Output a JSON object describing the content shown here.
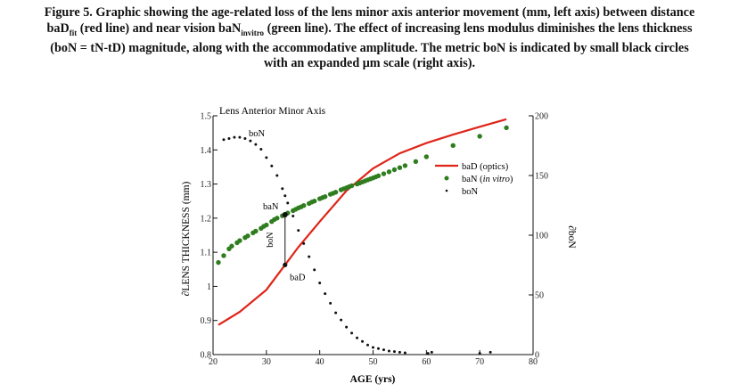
{
  "caption": {
    "line1": "Figure 5. Graphic showing the age-related loss of the lens minor axis anterior movement (mm, left axis) between distance",
    "line2": "baD_fit (red line) and near vision baN_invitro (green line). The effect of increasing lens modulus diminishes the lens thickness",
    "line3": "(boN = tN-tD) magnitude, along with the accommodative amplitude. The metric boN is indicated by small black circles",
    "line4": "with an expanded μm scale (right axis)."
  },
  "chart_data": {
    "type": "line",
    "title": "Lens Anterior Minor Axis",
    "xlabel": "AGE (yrs)",
    "ylabel": "∂LENS THICKNESS (mm)",
    "y2label": "∂boN",
    "xlim": [
      20,
      80
    ],
    "ylim": [
      0.8,
      1.5
    ],
    "y2lim": [
      0,
      200
    ],
    "x_ticks": [
      "20",
      "30",
      "40",
      "50",
      "60",
      "70",
      "80"
    ],
    "y_ticks": [
      "0.8",
      "0.9",
      "1",
      "1.1",
      "1.2",
      "1.3",
      "1.4",
      "1.5"
    ],
    "y2_ticks": [
      "0",
      "50",
      "100",
      "150",
      "200"
    ],
    "grid": false,
    "legend_position": "right-middle",
    "annotations": {
      "baN_label": "baN",
      "baD_label": "baD",
      "boN_vertical_label": "boN",
      "boN_curve_label": "boN",
      "baN_point": {
        "x": 33.5,
        "y": 1.21
      },
      "baD_point": {
        "x": 33.5,
        "y": 1.063
      }
    },
    "series": [
      {
        "name": "baD (optics)",
        "axis": "left",
        "style": "line",
        "color": "#e02418",
        "x": [
          21,
          25,
          30,
          33.5,
          36,
          40,
          45,
          50,
          55,
          60,
          65,
          70,
          75
        ],
        "y": [
          0.887,
          0.925,
          0.99,
          1.063,
          1.115,
          1.19,
          1.28,
          1.346,
          1.39,
          1.42,
          1.445,
          1.468,
          1.49
        ]
      },
      {
        "name": "baN (in vitro)",
        "axis": "left",
        "style": "points",
        "color": "#2e7d1e",
        "x": [
          21,
          22,
          23,
          23.5,
          24.5,
          25,
          26,
          26.5,
          27.5,
          28,
          29,
          29.5,
          30,
          31,
          31.5,
          32,
          33,
          33.5,
          34,
          35,
          35.5,
          36,
          36.5,
          37,
          38,
          38.5,
          39,
          40,
          40.5,
          41,
          42,
          42.5,
          43,
          44,
          44.5,
          45,
          45.5,
          46,
          47,
          47.5,
          48,
          48.5,
          49,
          49.5,
          50,
          50.5,
          51,
          52,
          53,
          54,
          55,
          56,
          58,
          60,
          65,
          70,
          75
        ],
        "y": [
          1.07,
          1.09,
          1.11,
          1.118,
          1.128,
          1.134,
          1.143,
          1.148,
          1.157,
          1.162,
          1.17,
          1.176,
          1.18,
          1.19,
          1.196,
          1.2,
          1.207,
          1.211,
          1.215,
          1.222,
          1.226,
          1.23,
          1.233,
          1.237,
          1.243,
          1.247,
          1.25,
          1.257,
          1.26,
          1.263,
          1.27,
          1.273,
          1.276,
          1.283,
          1.286,
          1.289,
          1.292,
          1.295,
          1.3,
          1.303,
          1.306,
          1.309,
          1.312,
          1.315,
          1.318,
          1.321,
          1.324,
          1.33,
          1.336,
          1.342,
          1.348,
          1.354,
          1.366,
          1.38,
          1.413,
          1.44,
          1.465
        ]
      },
      {
        "name": "boN",
        "axis": "right",
        "style": "dots",
        "color": "#111111",
        "x": [
          22,
          23,
          24,
          25,
          26,
          27,
          28,
          29,
          30,
          31,
          32,
          33,
          33.5,
          34,
          35,
          36,
          37,
          38,
          39,
          40,
          41,
          42,
          43,
          44,
          45,
          46,
          47,
          48,
          49,
          50,
          51,
          52,
          53,
          54,
          55,
          56,
          60.3,
          61,
          70,
          72
        ],
        "y": [
          180,
          181,
          182,
          182,
          181,
          179,
          176,
          172,
          165,
          158,
          150,
          139,
          133,
          127,
          116,
          104,
          93,
          82,
          71,
          60,
          51,
          43,
          35,
          29,
          23,
          18,
          14,
          11,
          8,
          6,
          5,
          4,
          3,
          2.5,
          2,
          1.5,
          1,
          2,
          1,
          2
        ]
      }
    ]
  }
}
